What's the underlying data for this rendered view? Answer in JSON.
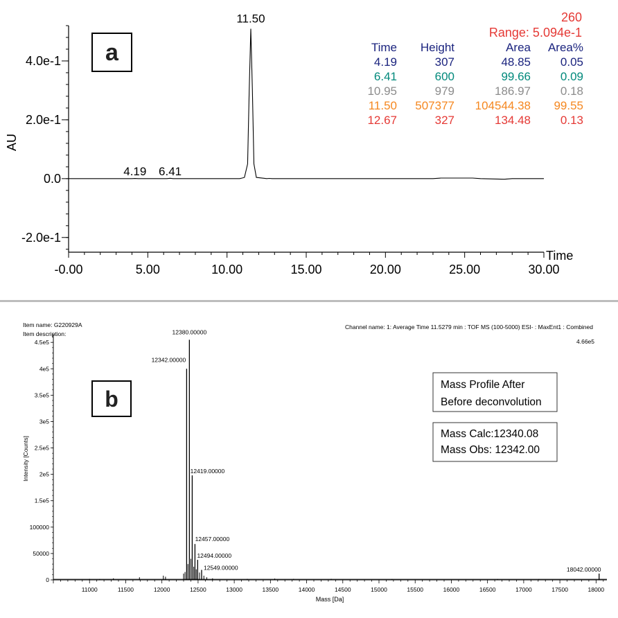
{
  "chart_data": [
    {
      "type": "line",
      "panel_label": "a",
      "xlabel": "Time",
      "ylabel": "AU",
      "xlim": [
        0,
        30
      ],
      "ylim": [
        -0.25,
        0.52
      ],
      "x_ticks": [
        0,
        5,
        10,
        15,
        20,
        25,
        30
      ],
      "x_tick_labels": [
        "-0.00",
        "5.00",
        "10.00",
        "15.00",
        "20.00",
        "25.00",
        "30.00"
      ],
      "y_ticks": [
        -0.2,
        0,
        0.2,
        0.4
      ],
      "y_tick_labels": [
        "-2.0e-1",
        "0.0",
        "2.0e-1",
        "4.0e-1"
      ],
      "series": [
        {
          "x": [
            0,
            4.0,
            4.19,
            4.4,
            6.2,
            6.41,
            6.6,
            10.8,
            10.95,
            11.1,
            11.3,
            11.4,
            11.5,
            11.6,
            11.7,
            11.85,
            12.5,
            12.67,
            12.85,
            23.0,
            23.5,
            25.5,
            26.0,
            27.5,
            28.0,
            30.0
          ],
          "y": [
            0,
            0,
            0.0006,
            0,
            0,
            0.0012,
            0,
            0,
            0.002,
            0.004,
            0.05,
            0.3,
            0.5094,
            0.3,
            0.05,
            0.004,
            0,
            0.0007,
            0,
            0,
            0.002,
            0.002,
            0,
            -0.002,
            0,
            0
          ]
        }
      ],
      "peak_labels": [
        {
          "x": 4.19,
          "text": "4.19"
        },
        {
          "x": 6.41,
          "text": "6.41"
        },
        {
          "x": 11.5,
          "text": "11.50"
        }
      ],
      "annotation_wavelength": "260",
      "annotation_range": "Range: 5.094e-1",
      "table": {
        "headers": [
          "Time",
          "Height",
          "Area",
          "Area%"
        ],
        "rows": [
          {
            "time": "4.19",
            "height": "307",
            "area": "48.85",
            "area_pct": "0.05",
            "color": "#1a237e"
          },
          {
            "time": "6.41",
            "height": "600",
            "area": "99.66",
            "area_pct": "0.09",
            "color": "#00897b"
          },
          {
            "time": "10.95",
            "height": "979",
            "area": "186.97",
            "area_pct": "0.18",
            "color": "#8c8c8c"
          },
          {
            "time": "11.50",
            "height": "507377",
            "area": "104544.38",
            "area_pct": "99.55",
            "color": "#f5871f"
          },
          {
            "time": "12.67",
            "height": "327",
            "area": "134.48",
            "area_pct": "0.13",
            "color": "#e53935"
          }
        ]
      },
      "colors": {
        "header": "#1a237e",
        "annotation": "#e53935",
        "trace": "#000000"
      }
    },
    {
      "type": "line",
      "panel_label": "b",
      "item_name": "Item name: G220929A",
      "item_description": "Item description:",
      "channel": "Channel name: 1: Average Time 11.5279 min : TOF MS (100-5000) ESI- : MaxEnt1 : Combined",
      "max_intensity": "4.66e5",
      "xlabel": "Mass [Da]",
      "ylabel": "Intensity [Counts]",
      "xlim": [
        10500,
        18150
      ],
      "ylim": [
        0,
        466000
      ],
      "x_ticks": [
        11000,
        11500,
        12000,
        12500,
        13000,
        13500,
        14000,
        14500,
        15000,
        15500,
        16000,
        16500,
        17000,
        17500,
        18000
      ],
      "x_tick_labels": [
        "11000",
        "11500",
        "12000",
        "12500",
        "13000",
        "13500",
        "14000",
        "14500",
        "15000",
        "15500",
        "16000",
        "16500",
        "17000",
        "17500",
        "18000"
      ],
      "y_ticks": [
        0,
        50000,
        100000,
        150000,
        200000,
        250000,
        300000,
        350000,
        400000,
        450000
      ],
      "y_tick_labels": [
        "0",
        "50000",
        "100000",
        "1.5e5",
        "2e5",
        "2.5e5",
        "3e5",
        "3.5e5",
        "4e5",
        "4.5e5"
      ],
      "peaks": [
        {
          "mass": 12342.0,
          "intensity": 400000
        },
        {
          "mass": 12380.0,
          "intensity": 455000
        },
        {
          "mass": 12419.0,
          "intensity": 198000
        },
        {
          "mass": 12457.0,
          "intensity": 68000
        },
        {
          "mass": 12494.0,
          "intensity": 38000
        },
        {
          "mass": 12549.0,
          "intensity": 19000
        },
        {
          "mass": 18042.0,
          "intensity": 12000
        }
      ],
      "minor_peaks": [
        {
          "mass": 11000,
          "intensity": 2000
        },
        {
          "mass": 11140,
          "intensity": 1500
        },
        {
          "mass": 11330,
          "intensity": 3000
        },
        {
          "mass": 11690,
          "intensity": 5000
        },
        {
          "mass": 12020,
          "intensity": 8000
        },
        {
          "mass": 12050,
          "intensity": 6000
        },
        {
          "mass": 12300,
          "intensity": 12000
        },
        {
          "mass": 12320,
          "intensity": 15000
        },
        {
          "mass": 12360,
          "intensity": 30000
        },
        {
          "mass": 12400,
          "intensity": 40000
        },
        {
          "mass": 12440,
          "intensity": 25000
        },
        {
          "mass": 12475,
          "intensity": 20000
        },
        {
          "mass": 12520,
          "intensity": 14000
        },
        {
          "mass": 12580,
          "intensity": 8000
        },
        {
          "mass": 12620,
          "intensity": 5000
        },
        {
          "mass": 12700,
          "intensity": 3000
        },
        {
          "mass": 13180,
          "intensity": 2000
        },
        {
          "mass": 13560,
          "intensity": 2500
        },
        {
          "mass": 13820,
          "intensity": 2000
        },
        {
          "mass": 14340,
          "intensity": 2000
        },
        {
          "mass": 15180,
          "intensity": 1500
        },
        {
          "mass": 16640,
          "intensity": 1500
        },
        {
          "mass": 17210,
          "intensity": 1500
        }
      ],
      "peak_labels": [
        {
          "mass": 12342.0,
          "text": "12342.00000"
        },
        {
          "mass": 12380.0,
          "text": "12380.00000"
        },
        {
          "mass": 12419.0,
          "text": "12419.00000"
        },
        {
          "mass": 12457.0,
          "text": "12457.00000"
        },
        {
          "mass": 12494.0,
          "text": "12494.00000"
        },
        {
          "mass": 12549.0,
          "text": "12549.00000"
        },
        {
          "mass": 18042.0,
          "text": "18042.00000"
        }
      ],
      "box1_lines": [
        "Mass Profile After",
        "Before deconvolution"
      ],
      "box2_lines": [
        "Mass Calc:12340.08",
        "Mass Obs: 12342.00"
      ]
    }
  ]
}
